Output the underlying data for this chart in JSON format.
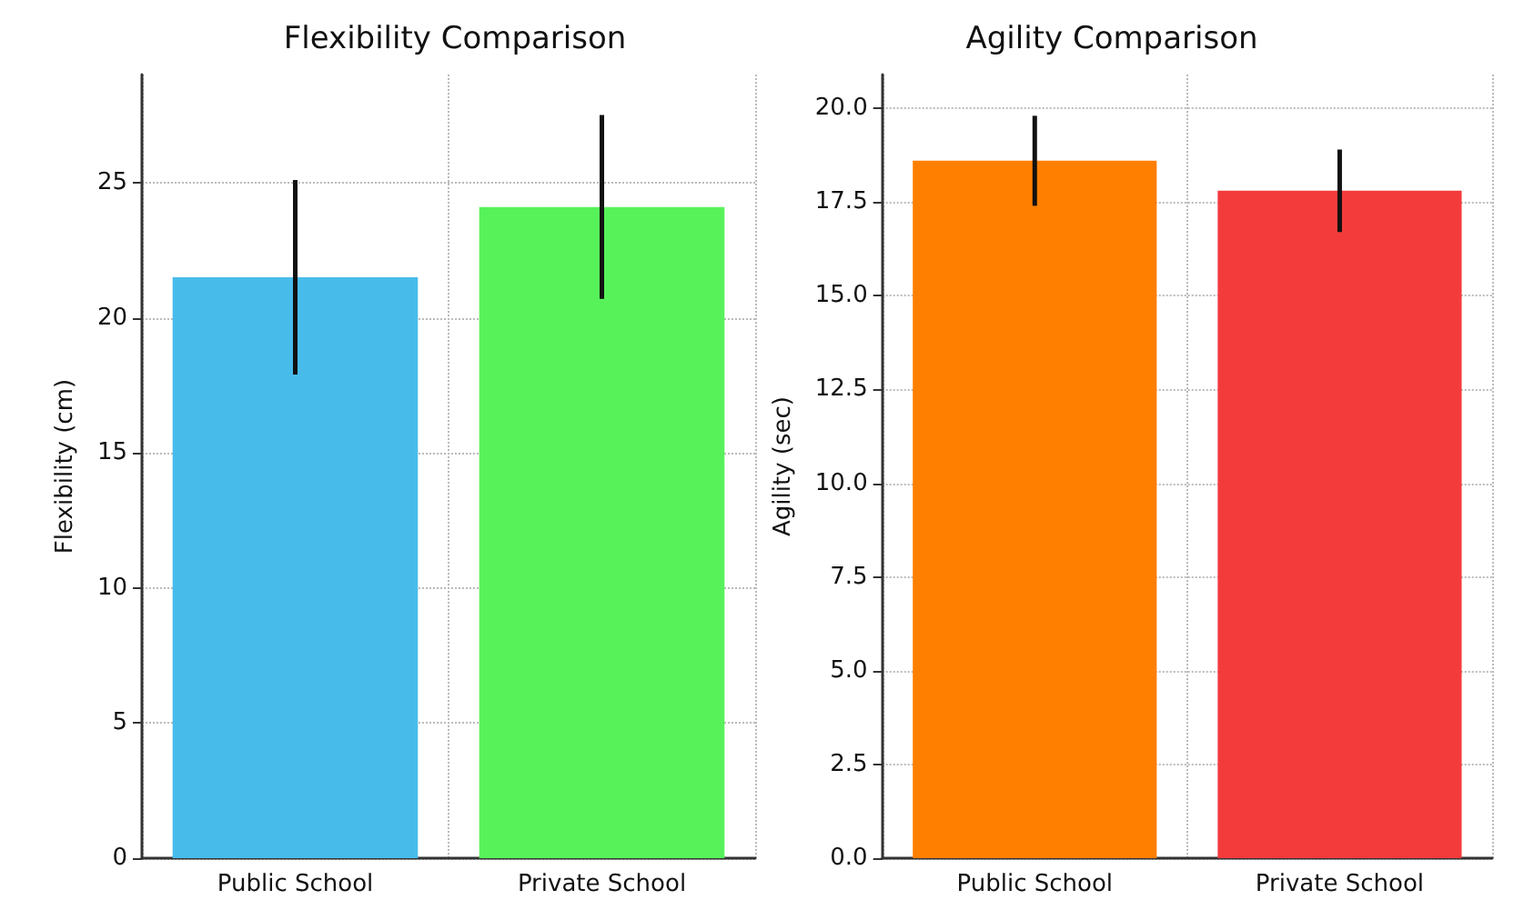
{
  "chart_data": [
    {
      "type": "bar",
      "title": "Flexibility Comparison",
      "ylabel": "Flexibility (cm)",
      "categories": [
        "Public School",
        "Private School"
      ],
      "values": [
        21.5,
        24.1
      ],
      "colors": [
        "#47bceb",
        "#57f25a"
      ],
      "errors": [
        3.6,
        3.4
      ],
      "ylim": [
        0,
        29
      ],
      "yticks": [
        0,
        5,
        10,
        15,
        20,
        25
      ],
      "grid": true
    },
    {
      "type": "bar",
      "title": "Agility Comparison",
      "ylabel": "Agility (sec)",
      "categories": [
        "Public School",
        "Private School"
      ],
      "values": [
        18.6,
        17.8
      ],
      "colors": [
        "#ff7f00",
        "#f43b3c"
      ],
      "errors": [
        1.2,
        1.1
      ],
      "ylim": [
        0,
        20.9
      ],
      "yticks": [
        {
          "value": 0,
          "label": "0.0"
        },
        {
          "value": 2.5,
          "label": "2.5"
        },
        {
          "value": 5,
          "label": "5.0"
        },
        {
          "value": 7.5,
          "label": "7.5"
        },
        {
          "value": 10,
          "label": "10.0"
        },
        {
          "value": 12.5,
          "label": "12.5"
        },
        {
          "value": 15,
          "label": "15.0"
        },
        {
          "value": 17.5,
          "label": "17.5"
        },
        {
          "value": 20,
          "label": "20.0"
        }
      ],
      "grid": true
    }
  ]
}
